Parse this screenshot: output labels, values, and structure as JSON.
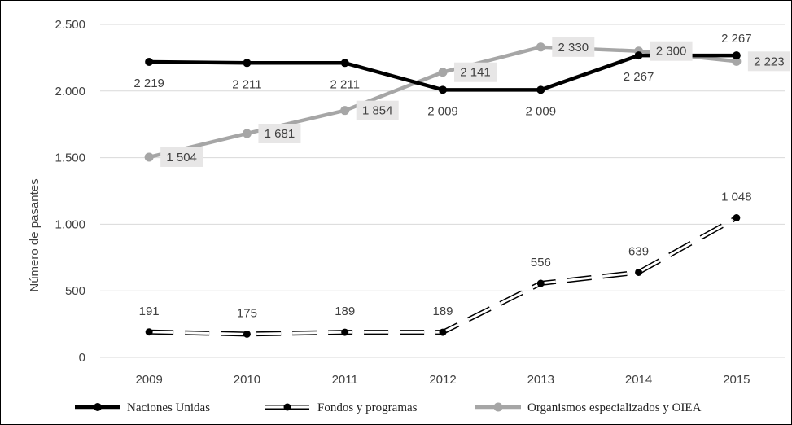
{
  "chart_data": {
    "type": "line",
    "ylabel": "Número de pasantes",
    "xlabel": "",
    "title": "",
    "ylim": [
      0,
      2500
    ],
    "yticks": [
      0,
      500,
      1000,
      1500,
      2000,
      2500
    ],
    "ytick_labels": [
      "0",
      "500",
      "1.000",
      "1.500",
      "2.000",
      "2.500"
    ],
    "categories": [
      "2009",
      "2010",
      "2011",
      "2012",
      "2013",
      "2014",
      "2015"
    ],
    "grid": "horizontal",
    "legend_position": "bottom",
    "series": [
      {
        "name": "Naciones Unidas",
        "values": [
          2219,
          2211,
          2211,
          2009,
          2009,
          2267,
          2267
        ],
        "labels": [
          "2 219",
          "2 211",
          "2 211",
          "2 009",
          "2 009",
          "2 267",
          "2 267"
        ],
        "color": "#000000",
        "style": "solid"
      },
      {
        "name": "Fondos y programas",
        "values": [
          191,
          175,
          189,
          189,
          556,
          639,
          1048
        ],
        "labels": [
          "191",
          "175",
          "189",
          "189",
          "556",
          "639",
          "1 048"
        ],
        "color": "#000000",
        "style": "dashed-outline"
      },
      {
        "name": "Organismos especializados y OIEA",
        "values": [
          1504,
          1681,
          1854,
          2141,
          2330,
          2300,
          2223
        ],
        "labels": [
          "1 504",
          "1 681",
          "1 854",
          "2 141",
          "2 330",
          "2 300",
          "2 223"
        ],
        "color": "#a6a6a6",
        "style": "solid",
        "label_box_color": "#e7e6e6"
      }
    ]
  }
}
